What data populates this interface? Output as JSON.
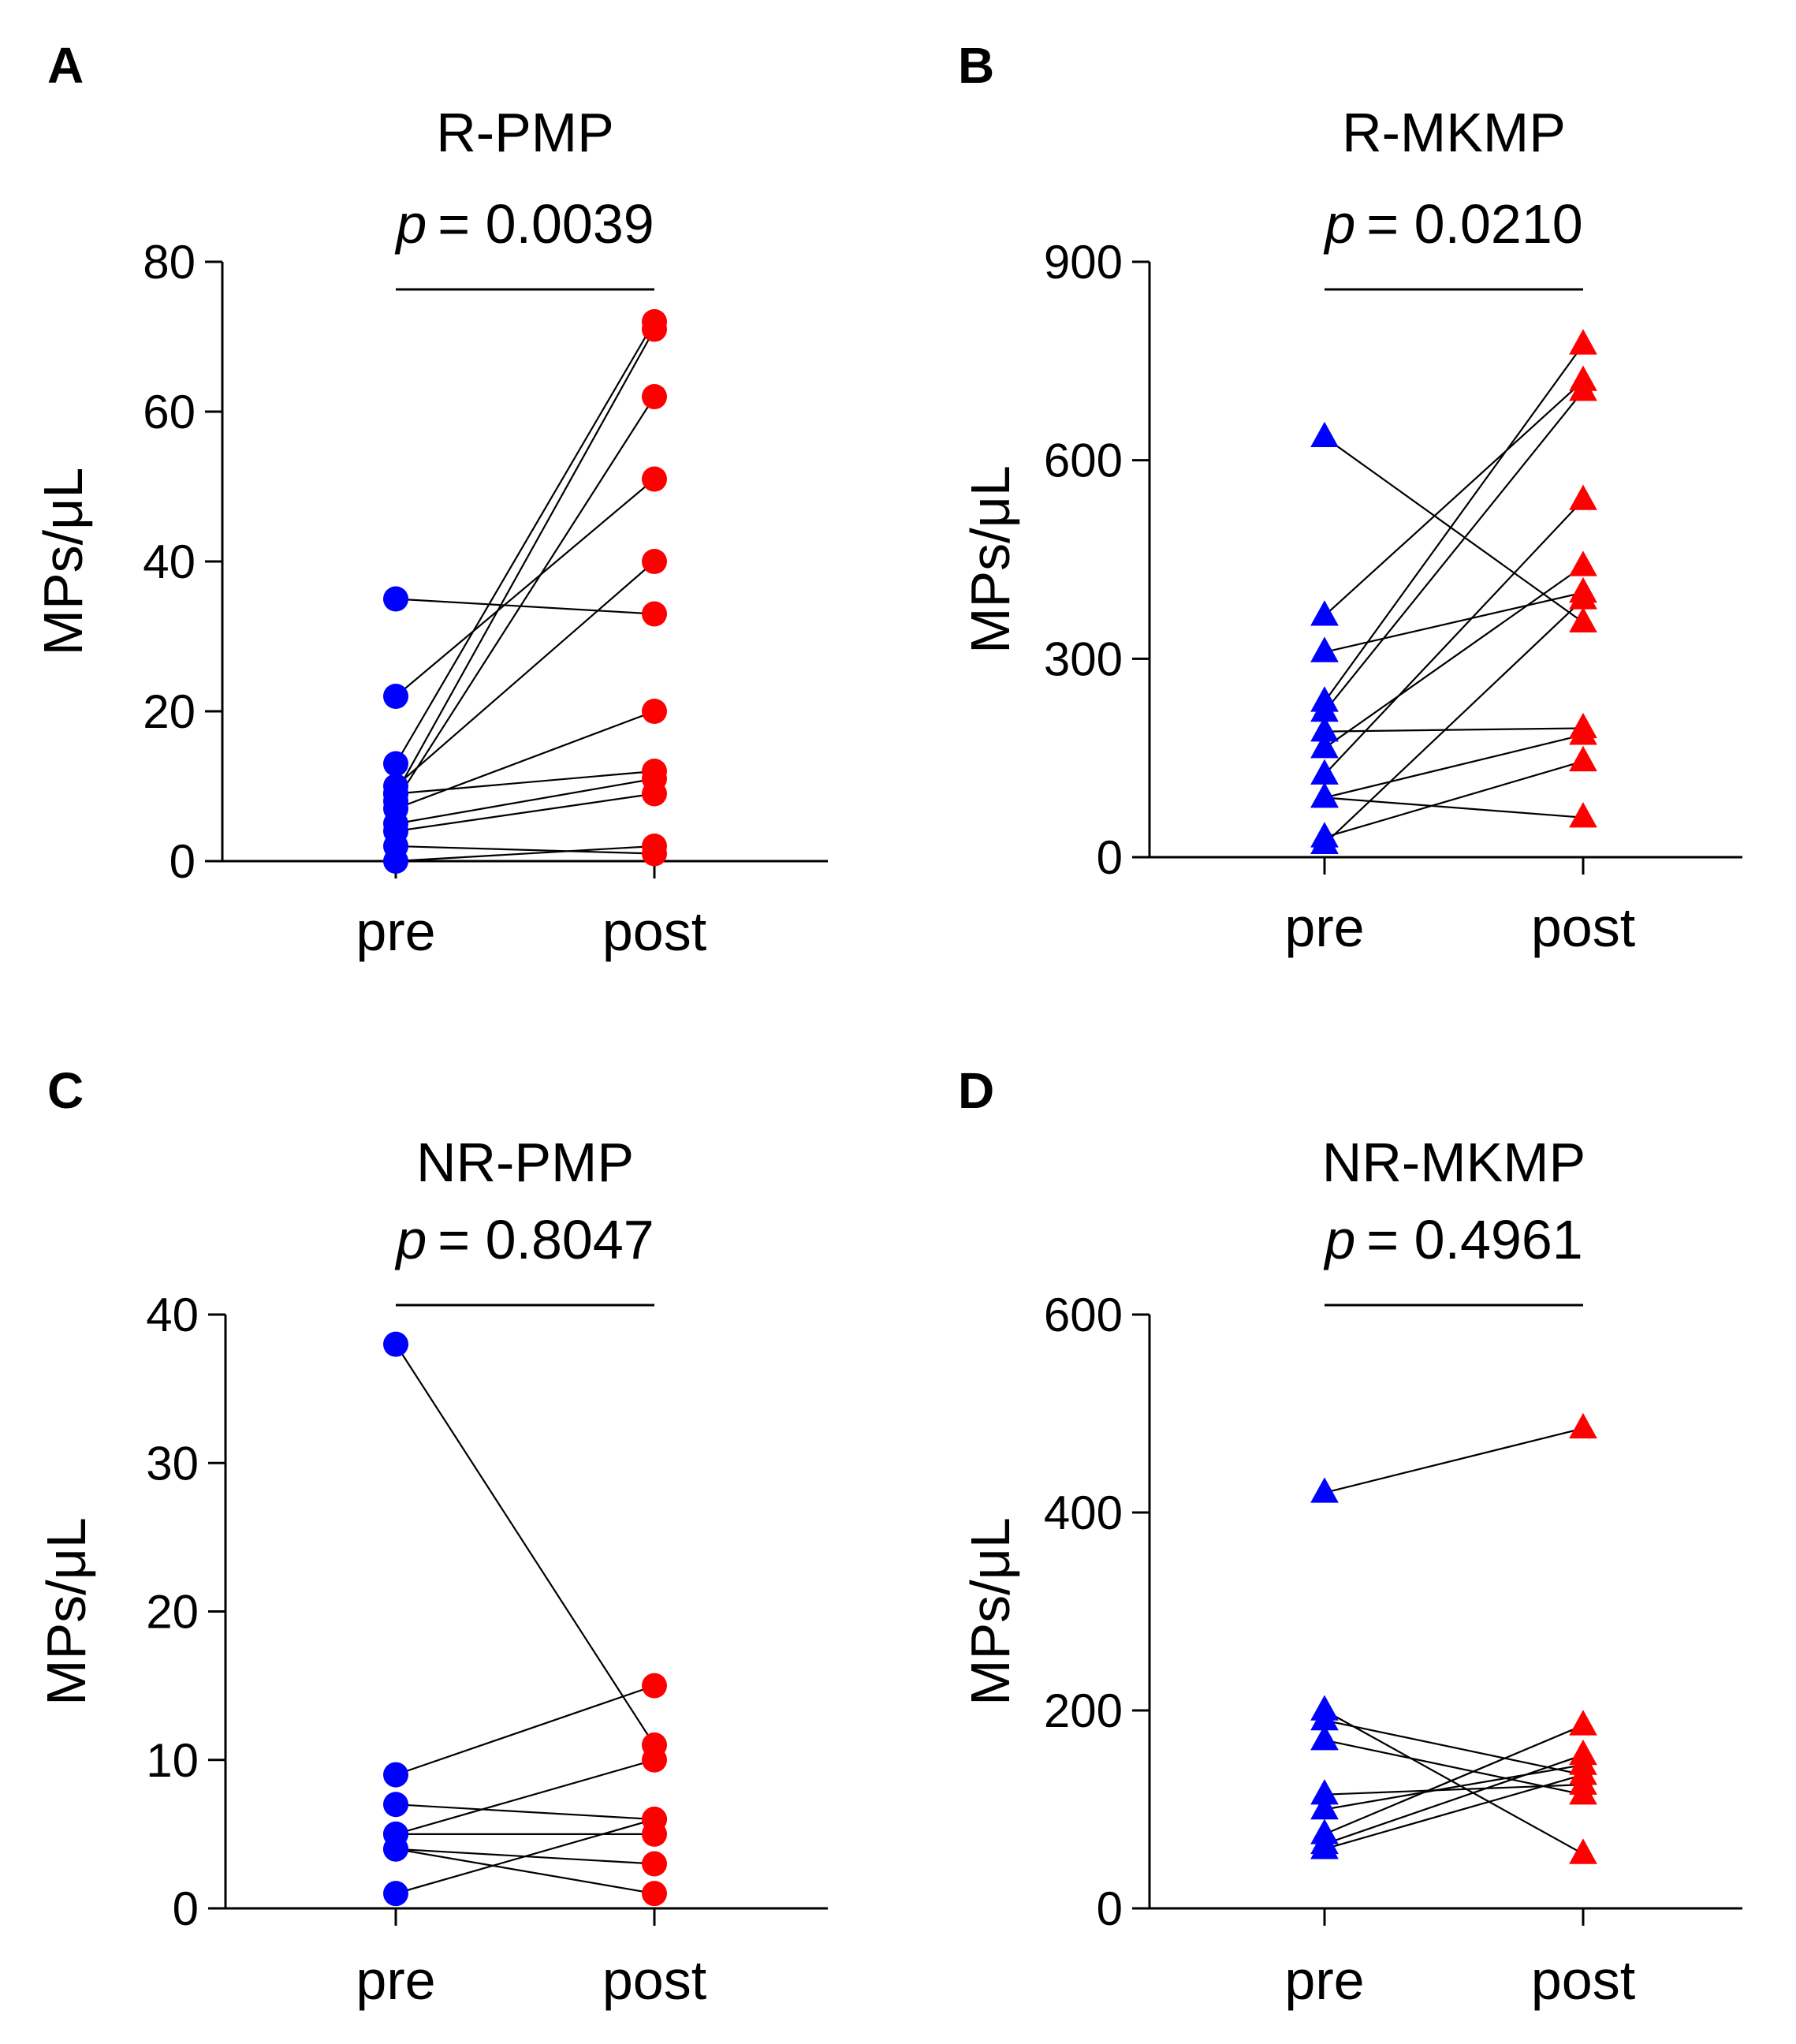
{
  "figure": {
    "pre_color": "#0000ff",
    "post_color": "#ff0000",
    "line_color": "#000000"
  },
  "chart_data": [
    {
      "panel": "A",
      "type": "scatter",
      "marker": "circle",
      "title": "R-PMP",
      "p_symbol": "p",
      "p_text": "= 0.0039",
      "ylabel": "MPs/μL",
      "categories": [
        "pre",
        "post"
      ],
      "ylim": [
        0,
        80
      ],
      "yticks": [
        0,
        20,
        40,
        60,
        80
      ],
      "pairs": [
        [
          35,
          33
        ],
        [
          22,
          51
        ],
        [
          13,
          72
        ],
        [
          10,
          40
        ],
        [
          9,
          71
        ],
        [
          8,
          62
        ],
        [
          7,
          20
        ],
        [
          9,
          12
        ],
        [
          5,
          11
        ],
        [
          4,
          9
        ],
        [
          2,
          1
        ],
        [
          0,
          2
        ]
      ]
    },
    {
      "panel": "B",
      "type": "scatter",
      "marker": "triangle",
      "title": "R-MKMP",
      "p_symbol": "p",
      "p_text": "= 0.0210",
      "ylabel": "MPs/μL",
      "categories": [
        "pre",
        "post"
      ],
      "ylim": [
        0,
        900
      ],
      "yticks": [
        0,
        300,
        600,
        900
      ],
      "pairs": [
        [
          635,
          355
        ],
        [
          365,
          720
        ],
        [
          310,
          400
        ],
        [
          235,
          775
        ],
        [
          220,
          705
        ],
        [
          190,
          195
        ],
        [
          165,
          440
        ],
        [
          125,
          540
        ],
        [
          90,
          185
        ],
        [
          90,
          60
        ],
        [
          30,
          145
        ],
        [
          20,
          390
        ]
      ]
    },
    {
      "panel": "C",
      "type": "scatter",
      "marker": "circle",
      "title": "NR-PMP",
      "p_symbol": "p",
      "p_text": "= 0.8047",
      "ylabel": "MPs/μL",
      "categories": [
        "pre",
        "post"
      ],
      "ylim": [
        0,
        40
      ],
      "yticks": [
        0,
        10,
        20,
        30,
        40
      ],
      "pairs": [
        [
          38,
          11
        ],
        [
          9,
          15
        ],
        [
          7,
          6
        ],
        [
          5,
          10
        ],
        [
          5,
          5
        ],
        [
          4,
          3
        ],
        [
          4,
          1
        ],
        [
          1,
          6
        ]
      ]
    },
    {
      "panel": "D",
      "type": "scatter",
      "marker": "triangle",
      "title": "NR-MKMP",
      "p_symbol": "p",
      "p_text": "= 0.4961",
      "ylabel": "MPs/μL",
      "categories": [
        "pre",
        "post"
      ],
      "ylim": [
        0,
        600
      ],
      "yticks": [
        0,
        200,
        400,
        600
      ],
      "pairs": [
        [
          420,
          485
        ],
        [
          200,
          55
        ],
        [
          190,
          135
        ],
        [
          170,
          115
        ],
        [
          115,
          125
        ],
        [
          100,
          145
        ],
        [
          75,
          185
        ],
        [
          65,
          155
        ],
        [
          60,
          135
        ]
      ]
    }
  ]
}
